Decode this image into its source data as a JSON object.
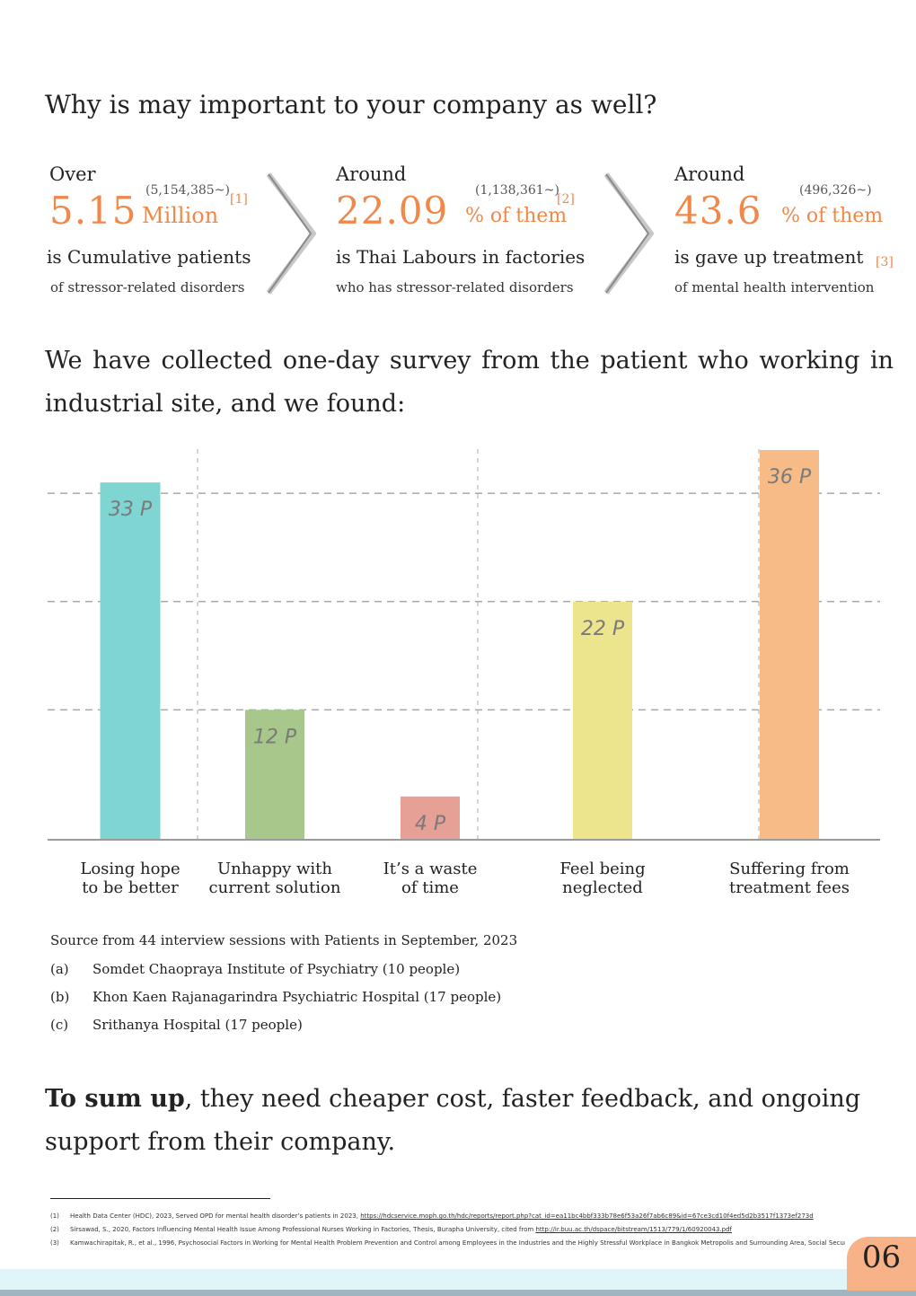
{
  "heading": "Why is may important to your company as well?",
  "stats": [
    {
      "lead": "Over",
      "paren": "(5,154,385~)",
      "ref": "[1]",
      "big": "5.15",
      "unit": "Million",
      "main": "is Cumulative patients",
      "sub": "of stressor-related disorders"
    },
    {
      "lead": "Around",
      "paren": "(1,138,361~)",
      "ref": "[2]",
      "big": "22.09",
      "unit": "% of them",
      "main": "is Thai Labours in factories",
      "sub": "who has stressor-related disorders"
    },
    {
      "lead": "Around",
      "paren": "(496,326~)",
      "ref": "[3]",
      "big": "43.6",
      "unit": "% of them",
      "main": "is gave up treatment",
      "sub": "of mental health intervention"
    }
  ],
  "survey_intro": {
    "line1": "We have collected one-day survey from the patient who working in",
    "line2": "industrial site, and we found:"
  },
  "chart_data": {
    "type": "bar",
    "categories": [
      [
        "Losing hope",
        "to be better"
      ],
      [
        "Unhappy with",
        "current solution"
      ],
      [
        "It’s a waste",
        "of time"
      ],
      [
        "Feel being",
        "neglected"
      ],
      [
        "Suffering from",
        "treatment fees"
      ]
    ],
    "values": [
      33,
      12,
      4,
      22,
      36
    ],
    "data_labels": [
      "33 P",
      "12 P",
      "4 P",
      "22 P",
      "36 P"
    ],
    "colors": [
      "#7fd5d2",
      "#a8c78a",
      "#e6a096",
      "#ede48e",
      "#f6bb86"
    ],
    "ylim": [
      0,
      36
    ],
    "gridlines": [
      12,
      22,
      32
    ],
    "grid": true
  },
  "source": {
    "title": "Source from 44 interview sessions with Patients in September, 2023",
    "items": [
      {
        "marker": "(a)",
        "text": "Somdet Chaopraya Institute of Psychiatry (10 people)"
      },
      {
        "marker": "(b)",
        "text": "Khon Kaen Rajanagarindra Psychiatric Hospital (17 people)"
      },
      {
        "marker": "(c)",
        "text": "Srithanya Hospital (17 people)"
      }
    ]
  },
  "summary": {
    "bold": "To sum up",
    "rest": ", they need cheaper cost, faster feedback, and ongoing support from their company."
  },
  "footnotes": [
    {
      "n": "(1)",
      "text": "Health Data Center (HDC), 2023, Served OPD for mental health disorder’s patients in 2023, ",
      "link": "https://hdcservice.moph.go.th/hdc/reports/report.php?cat_id=ea11bc4bbf333b78e6f53a26f7ab6c89&id=67ce3cd10f4ed5d2b3517f1373ef273d"
    },
    {
      "n": "(2)",
      "text": "Sirsawad, S., 2020, Factors Influencing Mental Health Issue Among Professional Nurses Working in Factories, Thesis, Burapha University, cited from ",
      "link": "http://ir.buu.ac.th/dspace/bitstream/1513/779/1/60920043.pdf"
    },
    {
      "n": "(3)",
      "text": "Kamwachirapitak, R., et al., 1996, Psychosocial Factors in Working for Mental Health Problem Prevention and Control among Employees in the Industries and the Highly Stressful Workplace in Bangkok Metropolis and Surrounding Area, Social Security Office",
      "link": ""
    }
  ],
  "page_number": "06"
}
